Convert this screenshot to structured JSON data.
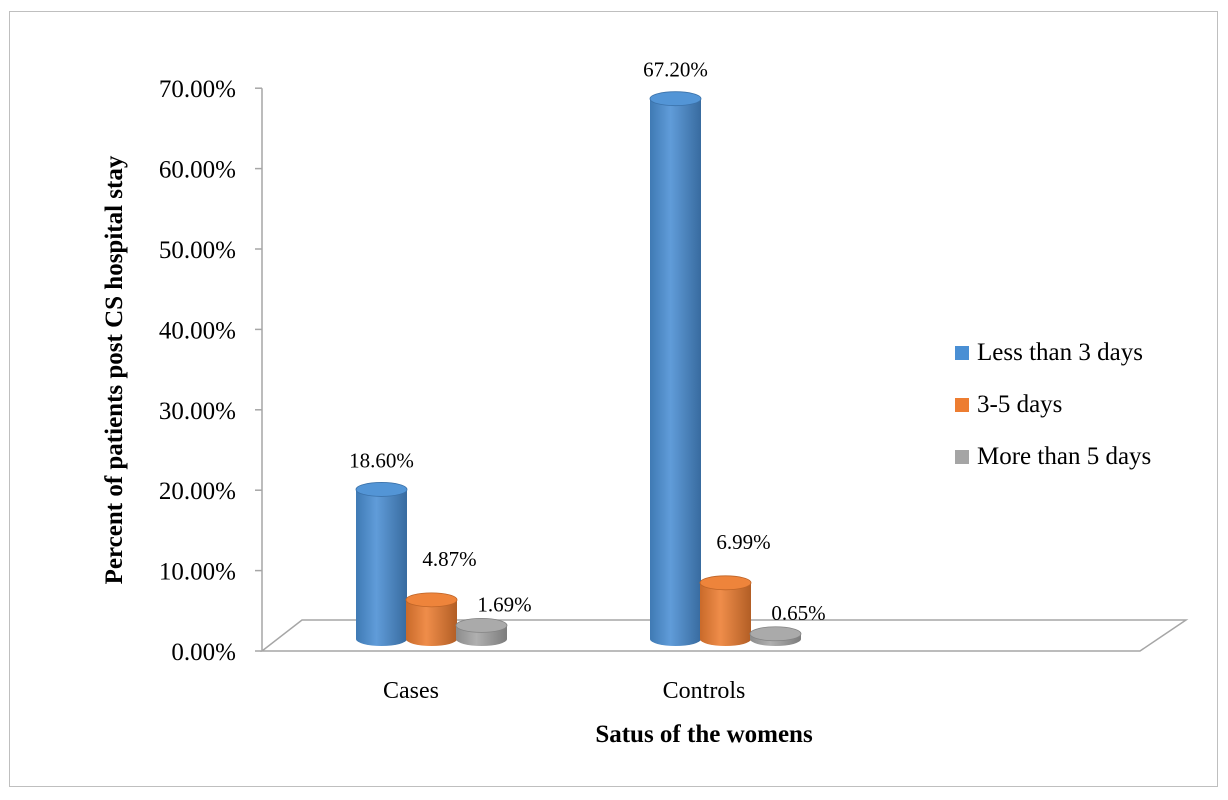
{
  "chart_data": {
    "type": "bar",
    "categories": [
      "Cases",
      "Controls"
    ],
    "series": [
      {
        "name": "Less than 3 days",
        "values": [
          18.6,
          67.2
        ],
        "labels": [
          "18.60%",
          "67.20%"
        ],
        "color": "#4a8fd4"
      },
      {
        "name": "3-5 days",
        "values": [
          4.87,
          6.99
        ],
        "labels": [
          "4.87%",
          "6.99%"
        ],
        "color": "#ed7d31"
      },
      {
        "name": "More than 5 days",
        "values": [
          1.69,
          0.65
        ],
        "labels": [
          "1.69%",
          "0.65%"
        ],
        "color": "#a5a5a5"
      }
    ],
    "yticks": [
      "0.00%",
      "10.00%",
      "20.00%",
      "30.00%",
      "40.00%",
      "50.00%",
      "60.00%",
      "70.00%"
    ],
    "ylim": [
      0,
      70
    ],
    "xlabel": "Satus of the womens",
    "ylabel": "Percent of patients post CS hospital stay",
    "legend_position": "right",
    "style": "3d-cylinder"
  }
}
